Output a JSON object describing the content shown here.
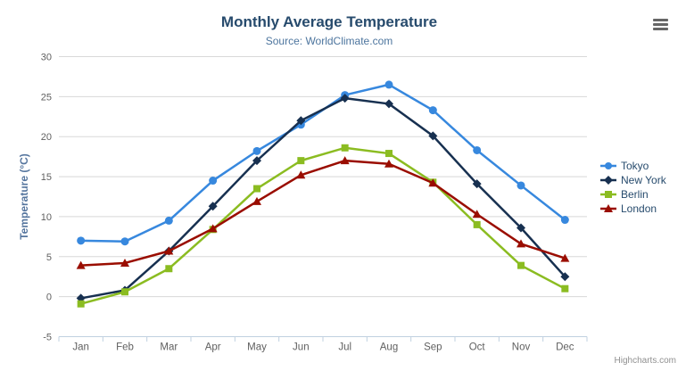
{
  "title": "Monthly Average Temperature",
  "subtitle": "Source: WorldClimate.com",
  "credits": "Highcharts.com",
  "export_menu": {
    "icon": "hamburger-menu-icon"
  },
  "colors": {
    "title": "#274b6d",
    "subtitle": "#4d759e",
    "axis_labels": "#606060",
    "axis_title": "#55759e",
    "grid": "#d8d8d8",
    "axis_line": "#c0d0e0",
    "legend_text": "#274b6d",
    "credits_text": "#909090",
    "menu_icon": "#666666"
  },
  "chart_data": {
    "type": "line",
    "title": "Monthly Average Temperature",
    "subtitle": "Source: WorldClimate.com",
    "xlabel": "",
    "ylabel": "Temperature (°C)",
    "ylim": [
      -5,
      30
    ],
    "yticks": [
      30,
      25,
      20,
      15,
      10,
      5,
      0,
      -5
    ],
    "grid": true,
    "legend_position": "right",
    "categories": [
      "Jan",
      "Feb",
      "Mar",
      "Apr",
      "May",
      "Jun",
      "Jul",
      "Aug",
      "Sep",
      "Oct",
      "Nov",
      "Dec"
    ],
    "series": [
      {
        "name": "Tokyo",
        "color": "#3788de",
        "marker": "circle",
        "values": [
          7.0,
          6.9,
          9.5,
          14.5,
          18.2,
          21.5,
          25.2,
          26.5,
          23.3,
          18.3,
          13.9,
          9.6
        ]
      },
      {
        "name": "New York",
        "color": "#173050",
        "marker": "diamond",
        "values": [
          -0.2,
          0.8,
          5.7,
          11.3,
          17.0,
          22.0,
          24.8,
          24.1,
          20.1,
          14.1,
          8.6,
          2.5
        ]
      },
      {
        "name": "Berlin",
        "color": "#8bbc21",
        "marker": "square",
        "values": [
          -0.9,
          0.6,
          3.5,
          8.4,
          13.5,
          17.0,
          18.6,
          17.9,
          14.3,
          9.0,
          3.9,
          1.0
        ]
      },
      {
        "name": "London",
        "color": "#9a0d00",
        "marker": "triangle",
        "values": [
          3.9,
          4.2,
          5.7,
          8.5,
          11.9,
          15.2,
          17.0,
          16.6,
          14.2,
          10.3,
          6.6,
          4.8
        ]
      }
    ]
  }
}
